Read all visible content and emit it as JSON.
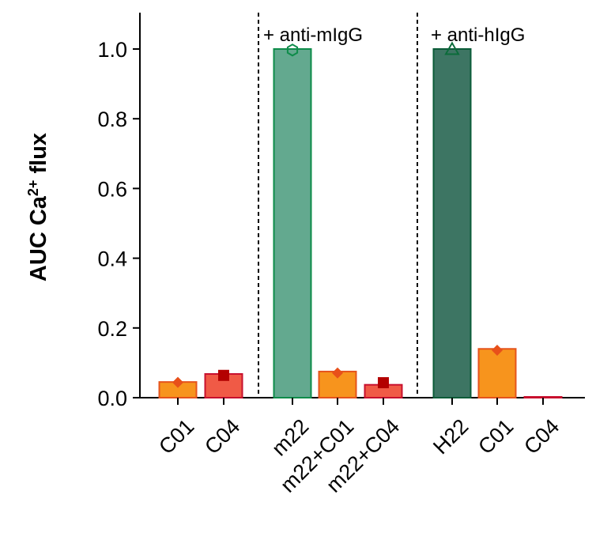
{
  "chart_data": {
    "type": "bar",
    "ylabel_main": "AUC Ca",
    "ylabel_sup": "2+",
    "ylabel_tail": " flux",
    "ylim": [
      0,
      1.1
    ],
    "yticks": [
      "0.0",
      "0.2",
      "0.4",
      "0.6",
      "0.8",
      "1.0"
    ],
    "grid": false,
    "groups": [
      {
        "annotation": ""
      },
      {
        "annotation": "+ anti-mIgG"
      },
      {
        "annotation": "+ anti-hIgG"
      }
    ],
    "categories": [
      "C01",
      "C04",
      "m22",
      "m22+C01",
      "m22+C04",
      "H22",
      "C01",
      "C04"
    ],
    "values": [
      0.045,
      0.068,
      1.0,
      0.075,
      0.037,
      1.0,
      0.14,
      0.002
    ],
    "points": [
      0.044,
      0.064,
      0.997,
      0.071,
      0.043,
      0.999,
      0.136,
      null
    ],
    "group_of": [
      0,
      0,
      1,
      1,
      1,
      2,
      2,
      2
    ],
    "marker_shapes": [
      "diamond",
      "square",
      "hexagon",
      "diamond",
      "square",
      "triangle",
      "diamond",
      "none"
    ],
    "bar_fill": [
      "#f7941d",
      "#f05a46",
      "#63a98f",
      "#f7941d",
      "#f05a46",
      "#3d7563",
      "#f7941d",
      "#f05a46"
    ],
    "bar_stroke": [
      "#e5531c",
      "#c8102e",
      "#0e8c4a",
      "#e5531c",
      "#c8102e",
      "#0b5c38",
      "#e5531c",
      "#c8102e"
    ],
    "marker_color": [
      "#e8501a",
      "#b30000",
      "#0e8c4a",
      "#e8501a",
      "#b30000",
      "#0b6b3a",
      "#e8501a",
      "#b30000"
    ]
  }
}
